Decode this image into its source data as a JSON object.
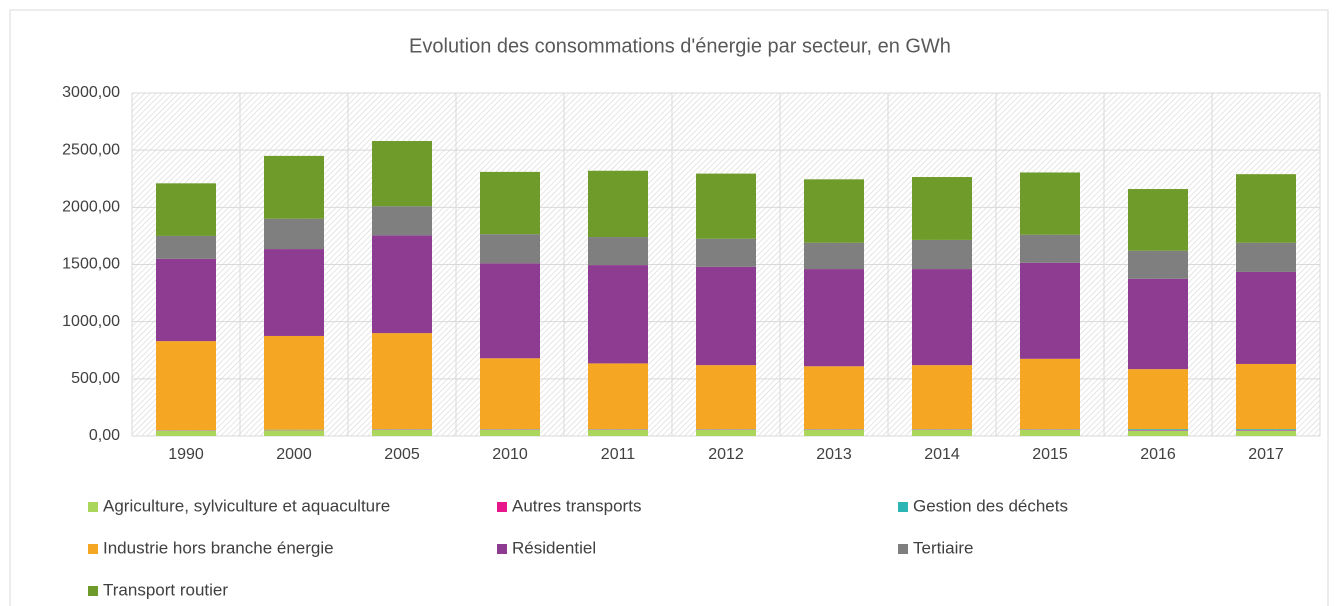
{
  "chart_data": {
    "type": "stacked_bar",
    "title": "Evolution des consommations d'énergie par secteur, en GWh",
    "categories": [
      "1990",
      "2000",
      "2005",
      "2010",
      "2011",
      "2012",
      "2013",
      "2014",
      "2015",
      "2016",
      "2017"
    ],
    "series": [
      {
        "name": "Agriculture, sylviculture et aquaculture",
        "color": "#a9d65b",
        "values": [
          45,
          50,
          55,
          55,
          55,
          55,
          55,
          55,
          55,
          45,
          45
        ]
      },
      {
        "name": "Autres transports",
        "color": "#e8168b",
        "values": [
          2,
          2,
          2,
          2,
          2,
          2,
          2,
          2,
          2,
          5,
          5
        ]
      },
      {
        "name": "Gestion des déchets",
        "color": "#2cb5b5",
        "values": [
          3,
          3,
          3,
          3,
          3,
          3,
          3,
          3,
          3,
          10,
          10
        ]
      },
      {
        "name": "Industrie hors branche énergie",
        "color": "#f5a623",
        "values": [
          780,
          820,
          840,
          620,
          575,
          560,
          550,
          560,
          615,
          525,
          570
        ]
      },
      {
        "name": "Résidentiel",
        "color": "#8e3c91",
        "values": [
          720,
          760,
          855,
          830,
          860,
          860,
          850,
          840,
          840,
          790,
          805
        ]
      },
      {
        "name": "Tertiaire",
        "color": "#7f7f7f",
        "values": [
          200,
          265,
          255,
          255,
          245,
          245,
          230,
          255,
          245,
          245,
          255
        ]
      },
      {
        "name": "Transport routier",
        "color": "#6e9b29",
        "values": [
          460,
          550,
          570,
          545,
          580,
          570,
          555,
          550,
          545,
          540,
          600
        ]
      }
    ],
    "ylim": [
      0,
      3000
    ],
    "yticks": [
      {
        "value": 0,
        "label": "0,00"
      },
      {
        "value": 500,
        "label": "500,00"
      },
      {
        "value": 1000,
        "label": "1000,00"
      },
      {
        "value": 1500,
        "label": "1500,00"
      },
      {
        "value": 2000,
        "label": "2000,00"
      },
      {
        "value": 2500,
        "label": "2500,00"
      },
      {
        "value": 3000,
        "label": "3000,00"
      }
    ],
    "grid": true,
    "legend": "bottom"
  }
}
